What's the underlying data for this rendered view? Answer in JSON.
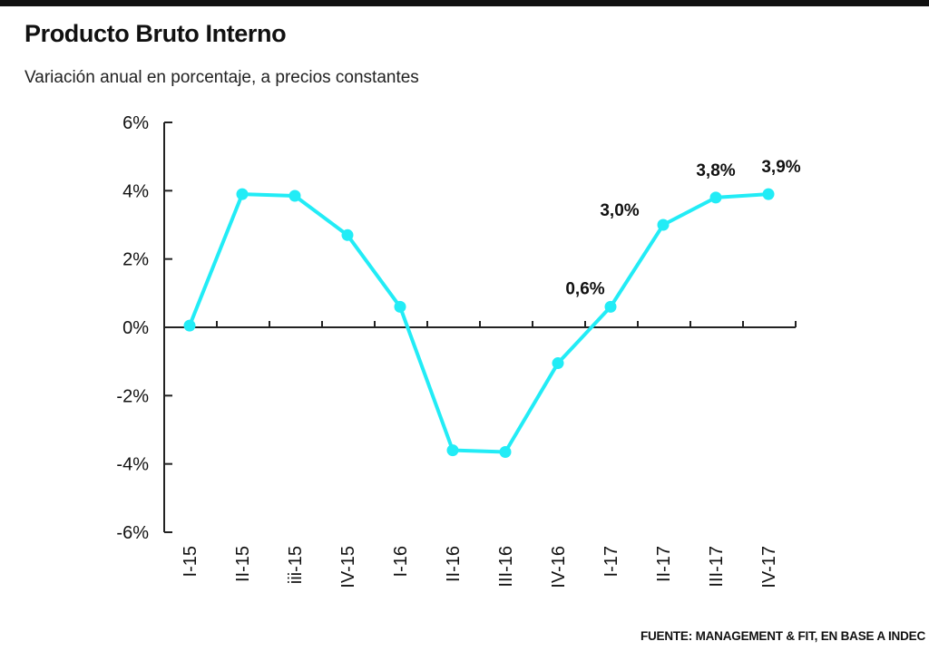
{
  "title": "Producto Bruto Interno",
  "subtitle": "Variación anual en porcentaje, a precios constantes",
  "source": "FUENTE: MANAGEMENT & FIT, EN BASE A INDEC",
  "colors": {
    "line": "#22ecf6",
    "axis": "#222222",
    "text": "#111111"
  },
  "chart_data": {
    "type": "line",
    "title": "Producto Bruto Interno",
    "subtitle": "Variación anual en porcentaje, a precios constantes",
    "xlabel": "",
    "ylabel": "",
    "ylim": [
      -6,
      6
    ],
    "yticks": [
      6,
      4,
      2,
      0,
      -2,
      -4,
      -6
    ],
    "ytick_labels": [
      "6%",
      "4%",
      "2%",
      "0%",
      "-2%",
      "-4%",
      "-6%"
    ],
    "categories": [
      "I-15",
      "II-15",
      "iii-15",
      "IV-15",
      "I-16",
      "II-16",
      "III-16",
      "IV-16",
      "I-17",
      "II-17",
      "III-17",
      "IV-17"
    ],
    "series": [
      {
        "name": "Producto Bruto Interno",
        "values": [
          0.05,
          3.9,
          3.85,
          2.7,
          0.6,
          -3.6,
          -3.65,
          -1.05,
          0.6,
          3.0,
          3.8,
          3.9
        ]
      }
    ],
    "annotations": [
      {
        "index": 8,
        "text": "0,6%"
      },
      {
        "index": 9,
        "text": "3,0%"
      },
      {
        "index": 10,
        "text": "3,8%"
      },
      {
        "index": 11,
        "text": "3,9%"
      }
    ],
    "grid": false,
    "legend": "none"
  }
}
